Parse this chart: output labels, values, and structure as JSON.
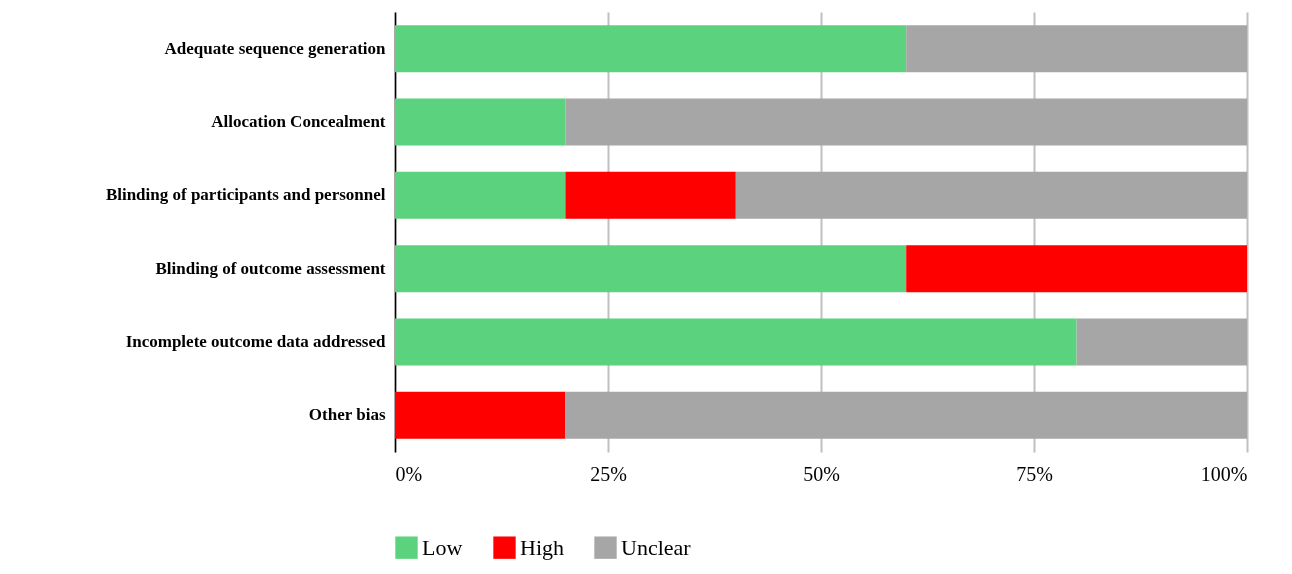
{
  "chart_data": {
    "type": "bar",
    "orientation": "horizontal",
    "stacked": true,
    "categories": [
      "Adequate sequence generation",
      "Allocation Concealment",
      "Blinding of participants and personnel",
      "Blinding of outcome assessment",
      "Incomplete outcome data addressed",
      "Other bias"
    ],
    "series": [
      {
        "name": "Low",
        "color": "#5bd27d",
        "values": [
          60,
          20,
          20,
          60,
          80,
          null
        ]
      },
      {
        "name": "High",
        "color": "#ff0000",
        "values": [
          null,
          null,
          20,
          40,
          null,
          20
        ]
      },
      {
        "name": "Unclear",
        "color": "#a6a6a6",
        "values": [
          40,
          80,
          60,
          null,
          20,
          80
        ]
      }
    ],
    "xlim": [
      0,
      100
    ],
    "xticks": [
      {
        "value": 0,
        "label": "0%"
      },
      {
        "value": 25,
        "label": "25%"
      },
      {
        "value": 50,
        "label": "50%"
      },
      {
        "value": 75,
        "label": "75%"
      },
      {
        "value": 100,
        "label": "100%"
      }
    ],
    "grid": "x",
    "legend": "bottom"
  }
}
